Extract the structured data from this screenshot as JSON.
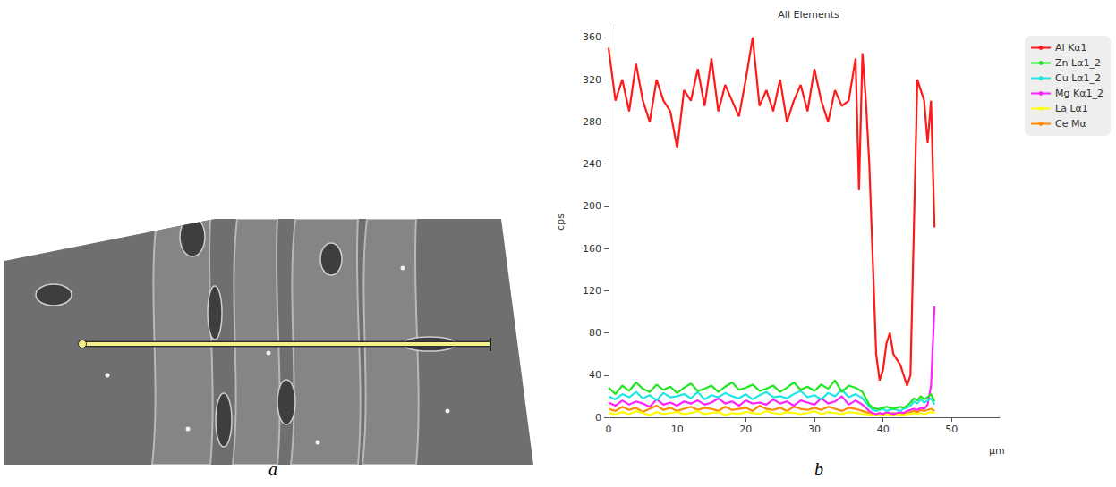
{
  "panel_labels": [
    "a",
    "b"
  ],
  "chart_data": {
    "type": "line",
    "title": "All Elements",
    "x_label": "µm",
    "y_label": "cps",
    "x": [
      0,
      1,
      2,
      3,
      4,
      5,
      6,
      7,
      8,
      9,
      10,
      11,
      12,
      13,
      14,
      15,
      16,
      17,
      18,
      19,
      20,
      21,
      22,
      23,
      24,
      25,
      26,
      27,
      28,
      29,
      30,
      31,
      32,
      33,
      34,
      35,
      36,
      36.5,
      37,
      37.5,
      38,
      38.5,
      39,
      39.5,
      40,
      40.5,
      41,
      41.5,
      42,
      42.5,
      43,
      43.5,
      44,
      44.5,
      45,
      45.5,
      46,
      46.5,
      47,
      47.5
    ],
    "series": [
      {
        "name": "Al Kα1",
        "color": "#ff1a1a",
        "values": [
          350,
          300,
          320,
          290,
          335,
          300,
          280,
          320,
          300,
          290,
          255,
          310,
          300,
          330,
          295,
          340,
          290,
          315,
          300,
          285,
          320,
          360,
          295,
          310,
          290,
          320,
          280,
          300,
          315,
          290,
          330,
          300,
          280,
          310,
          295,
          300,
          340,
          215,
          345,
          300,
          240,
          150,
          60,
          35,
          45,
          70,
          80,
          60,
          55,
          50,
          40,
          30,
          40,
          180,
          320,
          310,
          300,
          260,
          300,
          180
        ]
      },
      {
        "name": "Zn Lα1_2",
        "color": "#22e622",
        "values": [
          28,
          22,
          30,
          25,
          33,
          27,
          24,
          31,
          26,
          29,
          23,
          28,
          32,
          25,
          27,
          30,
          24,
          29,
          33,
          26,
          28,
          31,
          25,
          27,
          30,
          24,
          28,
          33,
          26,
          29,
          25,
          31,
          27,
          35,
          24,
          30,
          28,
          26,
          24,
          18,
          12,
          9,
          8,
          8,
          9,
          10,
          9,
          8,
          9,
          10,
          9,
          11,
          14,
          18,
          16,
          20,
          17,
          19,
          22,
          15
        ]
      },
      {
        "name": "Cu Lα1_2",
        "color": "#22e6e6",
        "values": [
          20,
          17,
          22,
          19,
          24,
          18,
          21,
          16,
          23,
          19,
          20,
          22,
          18,
          24,
          17,
          21,
          19,
          23,
          20,
          18,
          22,
          17,
          21,
          24,
          19,
          20,
          18,
          22,
          25,
          19,
          21,
          17,
          23,
          20,
          26,
          19,
          22,
          20,
          18,
          14,
          10,
          7,
          6,
          7,
          8,
          6,
          7,
          8,
          7,
          6,
          8,
          9,
          11,
          15,
          13,
          17,
          14,
          16,
          18,
          12
        ]
      },
      {
        "name": "Mg Kα1_2",
        "color": "#ff22ff",
        "values": [
          14,
          11,
          16,
          12,
          15,
          13,
          10,
          17,
          12,
          14,
          11,
          15,
          13,
          16,
          12,
          14,
          18,
          13,
          15,
          11,
          16,
          13,
          14,
          12,
          17,
          13,
          15,
          11,
          16,
          14,
          12,
          18,
          13,
          15,
          20,
          12,
          16,
          14,
          12,
          9,
          6,
          4,
          3,
          4,
          3,
          5,
          4,
          3,
          4,
          5,
          4,
          6,
          7,
          8,
          7,
          9,
          8,
          12,
          30,
          105
        ]
      },
      {
        "name": "La Lα1",
        "color": "#ffff00",
        "values": [
          4,
          3,
          5,
          3,
          6,
          4,
          2,
          5,
          3,
          4,
          5,
          3,
          4,
          6,
          3,
          4,
          5,
          2,
          4,
          3,
          5,
          4,
          3,
          6,
          4,
          3,
          5,
          4,
          3,
          4,
          6,
          3,
          5,
          4,
          3,
          5,
          4,
          4,
          3,
          3,
          2,
          2,
          3,
          2,
          2,
          3,
          2,
          2,
          3,
          2,
          2,
          3,
          3,
          4,
          3,
          4,
          3,
          4,
          5,
          4
        ]
      },
      {
        "name": "Ce Mα",
        "color": "#ff8c00",
        "values": [
          8,
          6,
          10,
          7,
          9,
          5,
          8,
          11,
          7,
          9,
          6,
          8,
          10,
          7,
          9,
          8,
          6,
          10,
          7,
          8,
          9,
          6,
          11,
          8,
          7,
          9,
          6,
          10,
          8,
          7,
          9,
          7,
          10,
          8,
          6,
          9,
          8,
          7,
          6,
          5,
          4,
          3,
          3,
          4,
          3,
          4,
          3,
          4,
          3,
          4,
          3,
          4,
          5,
          6,
          5,
          7,
          6,
          7,
          8,
          6
        ]
      }
    ],
    "xlim": [
      0,
      57
    ],
    "xticks": [
      0,
      10,
      20,
      30,
      40,
      50
    ],
    "ylim": [
      0,
      370
    ],
    "yticks": [
      0,
      40,
      80,
      120,
      160,
      200,
      240,
      280,
      320,
      360
    ],
    "grid": false,
    "legend": "right"
  }
}
